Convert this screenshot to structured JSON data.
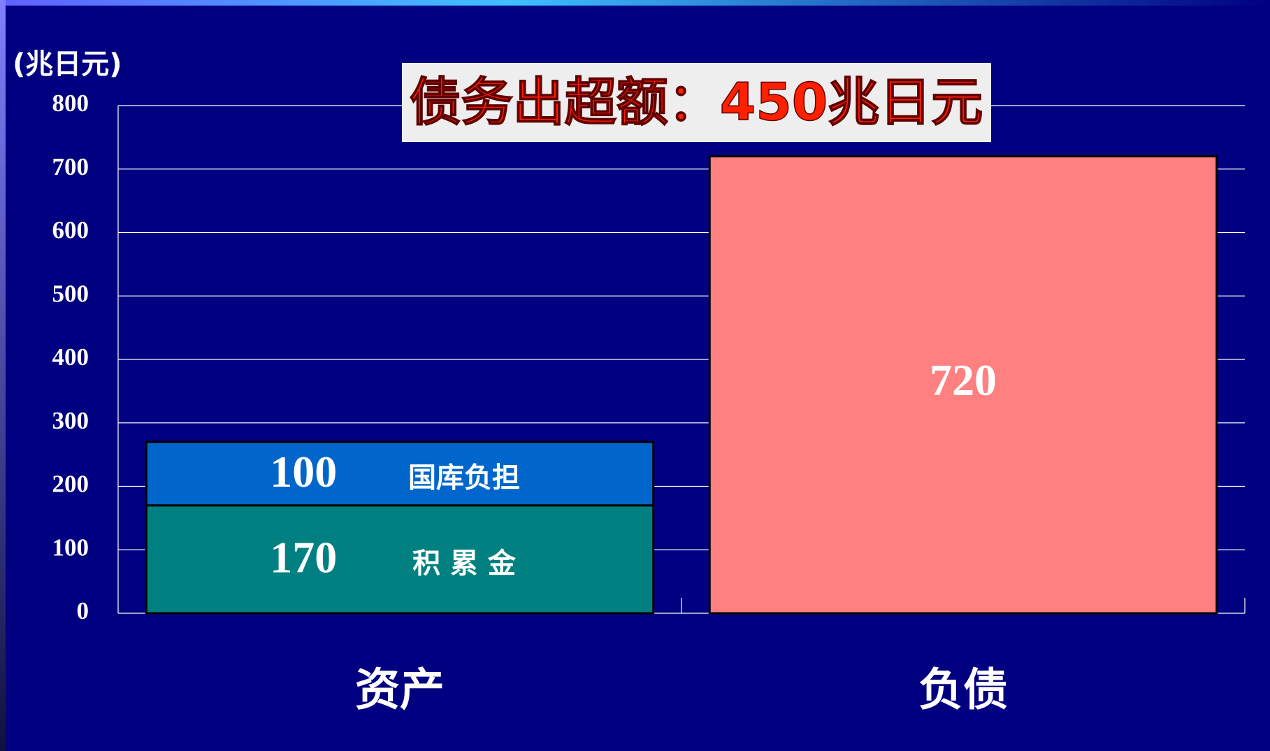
{
  "chart_data": {
    "type": "stacked_bar",
    "title": "债务出超额：450兆日元",
    "y_label": "(兆日元)",
    "categories": [
      "资产",
      "负债"
    ],
    "series": [
      {
        "name": "积 累 金",
        "color": "#008080",
        "values": [
          170,
          null
        ]
      },
      {
        "name": "国库负担",
        "color": "#0066cc",
        "values": [
          100,
          null
        ]
      },
      {
        "color": "#ff8080",
        "values": [
          null,
          720
        ]
      }
    ],
    "ylim": [
      0,
      800
    ],
    "yticks": [
      0,
      100,
      200,
      300,
      400,
      500,
      600,
      700,
      800
    ],
    "grid": true
  }
}
